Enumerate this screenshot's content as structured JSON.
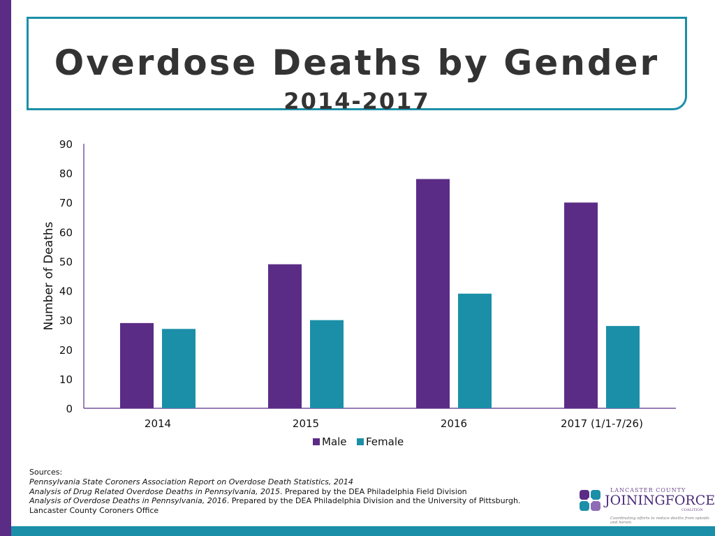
{
  "slide": {
    "title": "Overdose Deaths by Gender",
    "subtitle": "2014-2017"
  },
  "colors": {
    "male": "#5b2c86",
    "female": "#1b8fa8",
    "accent_left": "#5b2c86",
    "accent_bottom": "#1b8fa8",
    "title_border": "#1b8fa8"
  },
  "chart_data": {
    "type": "bar",
    "categories": [
      "2014",
      "2015",
      "2016",
      "2017 (1/1-7/26)"
    ],
    "series": [
      {
        "name": "Male",
        "values": [
          29,
          49,
          78,
          70
        ]
      },
      {
        "name": "Female",
        "values": [
          27,
          30,
          39,
          28
        ]
      }
    ],
    "title": "",
    "xlabel": "",
    "ylabel": "Number of Deaths",
    "ylim": [
      0,
      90
    ],
    "yticks": [
      0,
      10,
      20,
      30,
      40,
      50,
      60,
      70,
      80,
      90
    ],
    "grid": false,
    "legend_position": "bottom"
  },
  "sources": {
    "heading": "Sources:",
    "line1": "Pennsylvania State Coroners Association Report on Overdose Death Statistics, 2014",
    "line2_title": "Analysis of Drug Related Overdose Deaths in Pennsylvania, 2015",
    "line2_rest": ". Prepared by the DEA Philadelphia Field Division",
    "line3_title": "Analysis of Overdose Deaths in Pennsylvania, 2016",
    "line3_rest": ". Prepared by the DEA Philadelphia Division and the University of Pittsburgh.",
    "line4": "Lancaster County Coroners Office"
  },
  "logo": {
    "top": "LANCASTER COUNTY",
    "main": "JOININGFORCES",
    "coalition": "COALITION",
    "tagline": "Coordinating efforts to reduce deaths from opioids and heroin"
  }
}
